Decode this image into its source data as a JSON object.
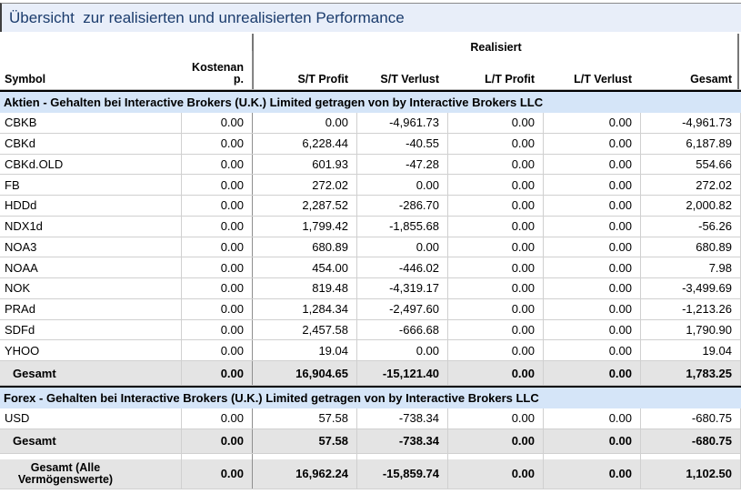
{
  "title": "Übersicht  zur realisierten und unrealisierten Performance",
  "header": {
    "group_label": "Realisiert",
    "columns": [
      "Symbol",
      "Kostenan\np.",
      "S/T Profit",
      "S/T Verlust",
      "L/T Profit",
      "L/T Verlust",
      "Gesamt"
    ]
  },
  "sections": [
    {
      "title": "Aktien - Gehalten bei Interactive Brokers (U.K.) Limited getragen von by Interactive Brokers LLC",
      "rows": [
        [
          "CBKB",
          "0.00",
          "0.00",
          "-4,961.73",
          "0.00",
          "0.00",
          "-4,961.73"
        ],
        [
          "CBKd",
          "0.00",
          "6,228.44",
          "-40.55",
          "0.00",
          "0.00",
          "6,187.89"
        ],
        [
          "CBKd.OLD",
          "0.00",
          "601.93",
          "-47.28",
          "0.00",
          "0.00",
          "554.66"
        ],
        [
          "FB",
          "0.00",
          "272.02",
          "0.00",
          "0.00",
          "0.00",
          "272.02"
        ],
        [
          "HDDd",
          "0.00",
          "2,287.52",
          "-286.70",
          "0.00",
          "0.00",
          "2,000.82"
        ],
        [
          "NDX1d",
          "0.00",
          "1,799.42",
          "-1,855.68",
          "0.00",
          "0.00",
          "-56.26"
        ],
        [
          "NOA3",
          "0.00",
          "680.89",
          "0.00",
          "0.00",
          "0.00",
          "680.89"
        ],
        [
          "NOAA",
          "0.00",
          "454.00",
          "-446.02",
          "0.00",
          "0.00",
          "7.98"
        ],
        [
          "NOK",
          "0.00",
          "819.48",
          "-4,319.17",
          "0.00",
          "0.00",
          "-3,499.69"
        ],
        [
          "PRAd",
          "0.00",
          "1,284.34",
          "-2,497.60",
          "0.00",
          "0.00",
          "-1,213.26"
        ],
        [
          "SDFd",
          "0.00",
          "2,457.58",
          "-666.68",
          "0.00",
          "0.00",
          "1,790.90"
        ],
        [
          "YHOO",
          "0.00",
          "19.04",
          "0.00",
          "0.00",
          "0.00",
          "19.04"
        ]
      ],
      "total": [
        "Gesamt",
        "0.00",
        "16,904.65",
        "-15,121.40",
        "0.00",
        "0.00",
        "1,783.25"
      ]
    },
    {
      "title": "Forex - Gehalten bei Interactive Brokers (U.K.) Limited getragen von by Interactive Brokers LLC",
      "rows": [
        [
          "USD",
          "0.00",
          "57.58",
          "-738.34",
          "0.00",
          "0.00",
          "-680.75"
        ]
      ],
      "total": [
        "Gesamt",
        "0.00",
        "57.58",
        "-738.34",
        "0.00",
        "0.00",
        "-680.75"
      ]
    }
  ],
  "grand_total": [
    "Gesamt (Alle\nVermögenswerte)",
    "0.00",
    "16,962.24",
    "-15,859.74",
    "0.00",
    "0.00",
    "1,102.50"
  ],
  "colors": {
    "title_bg": "#e8eef9",
    "title_text": "#1b3c6d",
    "section_bg": "#d5e5f8",
    "total_bg": "#e4e4e4",
    "border_light": "#d0d0d0",
    "border_dark": "#8f8f8f"
  }
}
